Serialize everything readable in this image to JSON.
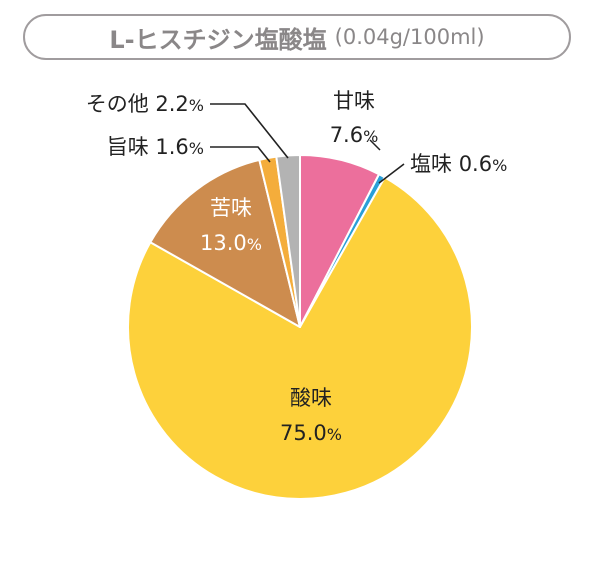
{
  "header": {
    "title": "L-ヒスチジン塩酸塩",
    "subtitle": "(0.04g/100ml)"
  },
  "chart_data": {
    "type": "pie",
    "title": "L-ヒスチジン塩酸塩",
    "subtitle": "(0.04g/100ml)",
    "start_angle_deg": 0,
    "direction": "clockwise",
    "slices": [
      {
        "label": "甘味",
        "value": 7.6,
        "value_text": "7.6",
        "color": "#ec6f9c"
      },
      {
        "label": "塩味",
        "value": 0.6,
        "value_text": "0.6",
        "color": "#2a9fd8"
      },
      {
        "label": "酸味",
        "value": 75.0,
        "value_text": "75.0",
        "color": "#fdd13b"
      },
      {
        "label": "苦味",
        "value": 13.0,
        "value_text": "13.0",
        "color": "#cd8c4e"
      },
      {
        "label": "旨味",
        "value": 1.6,
        "value_text": "1.6",
        "color": "#f4ad3b"
      },
      {
        "label": "その他",
        "value": 2.2,
        "value_text": "2.2",
        "color": "#b3b3b3"
      }
    ],
    "unit": "%"
  }
}
